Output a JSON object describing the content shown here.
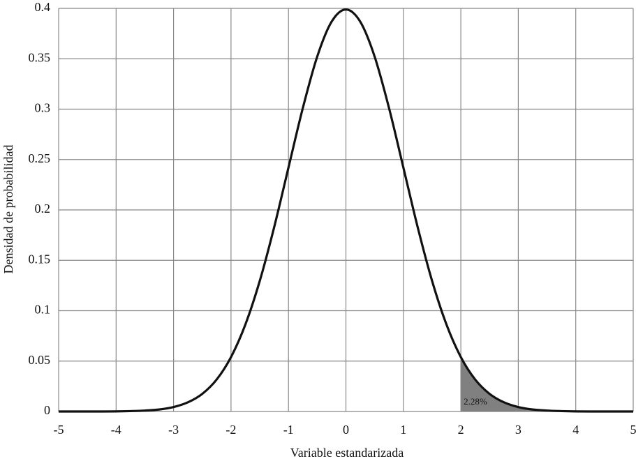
{
  "chart_data": {
    "type": "line",
    "x_label": "Variable estandarizada",
    "y_label": "Densidad de probabilidad",
    "x": [
      -5,
      -4.75,
      -4.5,
      -4.25,
      -4,
      -3.75,
      -3.5,
      -3.25,
      -3,
      -2.75,
      -2.5,
      -2.25,
      -2,
      -1.75,
      -1.5,
      -1.25,
      -1,
      -0.75,
      -0.5,
      -0.25,
      0,
      0.25,
      0.5,
      0.75,
      1,
      1.25,
      1.5,
      1.75,
      2,
      2.25,
      2.5,
      2.75,
      3,
      3.25,
      3.5,
      3.75,
      4,
      4.25,
      4.5,
      4.75,
      5
    ],
    "series": [
      {
        "color": "#111111",
        "values": [
          0,
          0,
          0,
          0,
          0.0001,
          0.0004,
          0.0009,
          0.002,
          0.0044,
          0.0091,
          0.0175,
          0.0317,
          0.054,
          0.0863,
          0.1295,
          0.1826,
          0.242,
          0.3011,
          0.3521,
          0.3867,
          0.3989,
          0.3867,
          0.3521,
          0.3011,
          0.242,
          0.1826,
          0.1295,
          0.0863,
          0.054,
          0.0317,
          0.0175,
          0.0091,
          0.0044,
          0.002,
          0.0009,
          0.0004,
          0.0001,
          0,
          0,
          0,
          0
        ]
      }
    ],
    "shaded_region": {
      "from": 2,
      "to": 5,
      "label": "2.28%",
      "color": "#808080"
    },
    "xlim": [
      -5,
      5
    ],
    "xticks": [
      -5,
      -4,
      -3,
      -2,
      -1,
      0,
      1,
      2,
      3,
      4,
      5
    ],
    "ylim": [
      0,
      0.4
    ],
    "yticks": [
      0,
      0.05,
      0.1,
      0.15,
      0.2,
      0.25,
      0.3,
      0.35,
      0.4
    ],
    "grid": true
  }
}
